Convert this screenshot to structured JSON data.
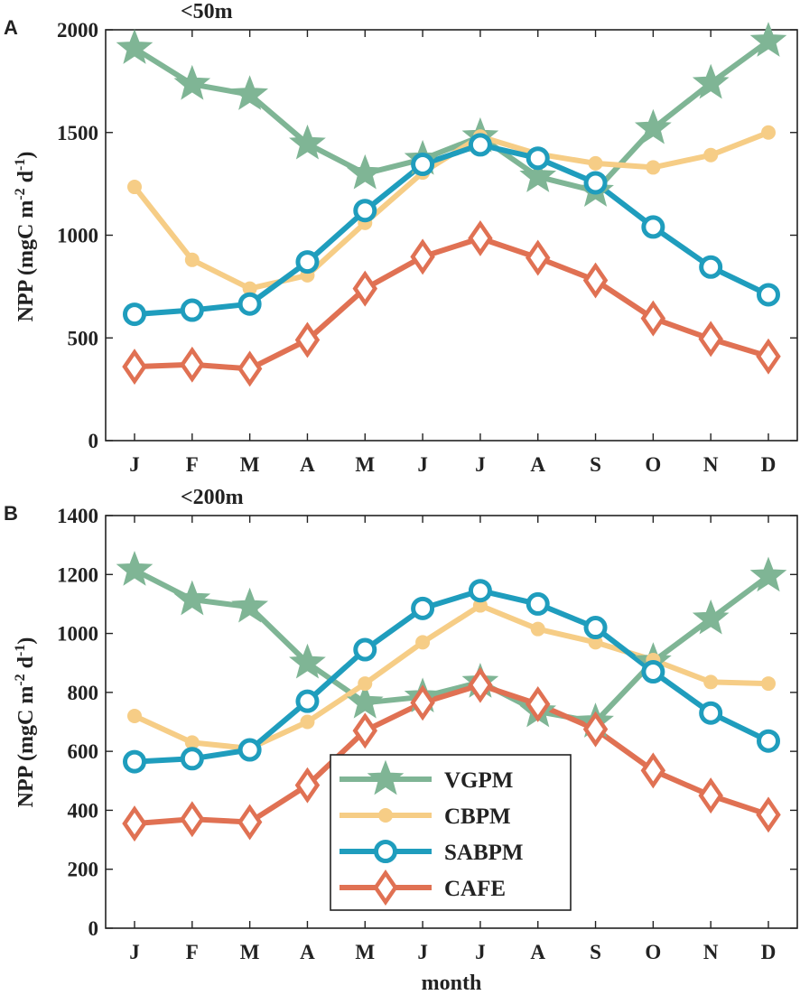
{
  "chart_data": [
    {
      "type": "line",
      "panel_label": "A",
      "title": "<50m",
      "xlabel": "",
      "ylabel_main": "NPP (mgC m",
      "ylabel_exp1": "-2",
      "ylabel_mid": " d",
      "ylabel_exp2": "-1",
      "ylabel_end": ")",
      "categories": [
        "J",
        "F",
        "M",
        "A",
        "M",
        "J",
        "J",
        "A",
        "S",
        "O",
        "N",
        "D"
      ],
      "ylim": [
        0,
        2000
      ],
      "yticks": [
        0,
        500,
        1000,
        1500,
        2000
      ],
      "ytick_labels": [
        "0",
        "500",
        "1000",
        "1500",
        "2000"
      ],
      "series": [
        {
          "name": "VGPM",
          "values": [
            1910,
            1735,
            1685,
            1445,
            1300,
            1370,
            1480,
            1285,
            1215,
            1520,
            1740,
            1945
          ]
        },
        {
          "name": "CBPM",
          "values": [
            1235,
            880,
            740,
            805,
            1060,
            1305,
            1480,
            1395,
            1350,
            1330,
            1390,
            1500
          ]
        },
        {
          "name": "SABPM",
          "values": [
            615,
            635,
            665,
            870,
            1120,
            1345,
            1440,
            1375,
            1255,
            1040,
            845,
            710
          ]
        },
        {
          "name": "CAFE",
          "values": [
            360,
            370,
            350,
            490,
            740,
            895,
            985,
            890,
            780,
            595,
            495,
            410
          ]
        }
      ]
    },
    {
      "type": "line",
      "panel_label": "B",
      "title": "<200m",
      "xlabel": "month",
      "ylabel_main": "NPP (mgC m",
      "ylabel_exp1": "-2",
      "ylabel_mid": " d",
      "ylabel_exp2": "-1",
      "ylabel_end": ")",
      "categories": [
        "J",
        "F",
        "M",
        "A",
        "M",
        "J",
        "J",
        "A",
        "S",
        "O",
        "N",
        "D"
      ],
      "ylim": [
        0,
        1400
      ],
      "yticks": [
        0,
        200,
        400,
        600,
        800,
        1000,
        1200,
        1400
      ],
      "ytick_labels": [
        "0",
        "200",
        "400",
        "600",
        "800",
        "1000",
        "1200",
        "1400"
      ],
      "series": [
        {
          "name": "VGPM",
          "values": [
            1215,
            1115,
            1090,
            900,
            765,
            785,
            835,
            735,
            700,
            905,
            1050,
            1195
          ]
        },
        {
          "name": "CBPM",
          "values": [
            720,
            630,
            610,
            700,
            830,
            970,
            1095,
            1015,
            970,
            910,
            835,
            830
          ]
        },
        {
          "name": "SABPM",
          "values": [
            565,
            575,
            605,
            770,
            945,
            1085,
            1145,
            1100,
            1020,
            870,
            730,
            635
          ]
        },
        {
          "name": "CAFE",
          "values": [
            355,
            370,
            360,
            485,
            670,
            765,
            825,
            760,
            675,
            535,
            450,
            385
          ]
        }
      ]
    }
  ],
  "legend": {
    "placement": "bottom-center of panel B",
    "entries": [
      "VGPM",
      "CBPM",
      "SABPM",
      "CAFE"
    ]
  },
  "series_colors": {
    "VGPM": "#7fb595",
    "CBPM": "#f6cd86",
    "SABPM": "#1f9dbd",
    "CAFE": "#e07153"
  },
  "series_markers": {
    "VGPM": "star",
    "CBPM": "dot",
    "SABPM": "ring",
    "CAFE": "diamond"
  }
}
